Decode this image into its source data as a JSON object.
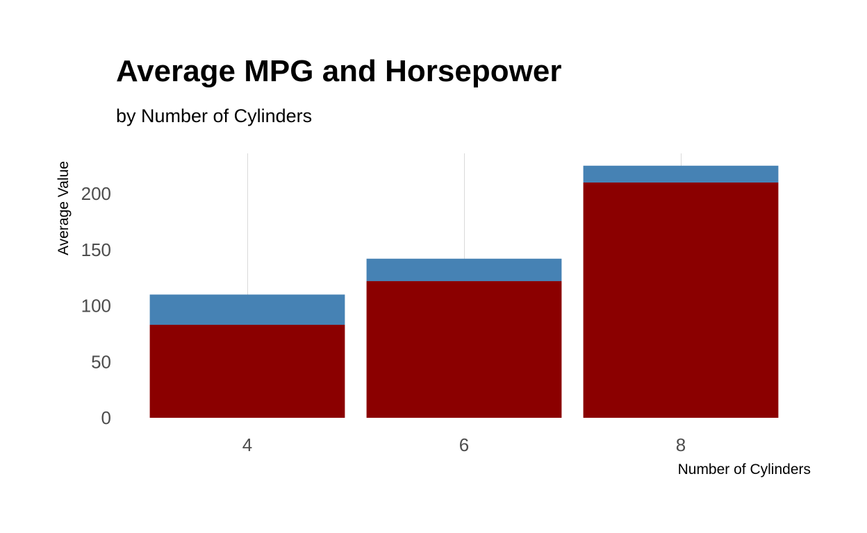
{
  "chart_data": {
    "type": "bar",
    "stacked": true,
    "title": "Average MPG and Horsepower",
    "subtitle": "by Number of Cylinders",
    "xlabel": "Number of Cylinders",
    "ylabel": "Average Value",
    "categories": [
      "4",
      "6",
      "8"
    ],
    "ylim": [
      0,
      236
    ],
    "yticks": [
      0,
      50,
      100,
      150,
      200
    ],
    "grid": {
      "major_x": true,
      "major_y": false
    },
    "legend": "none",
    "series": [
      {
        "values": [
          83,
          122,
          210
        ],
        "color": "#8b0000"
      },
      {
        "values": [
          27,
          20,
          15
        ],
        "color": "#4682b4"
      }
    ]
  }
}
